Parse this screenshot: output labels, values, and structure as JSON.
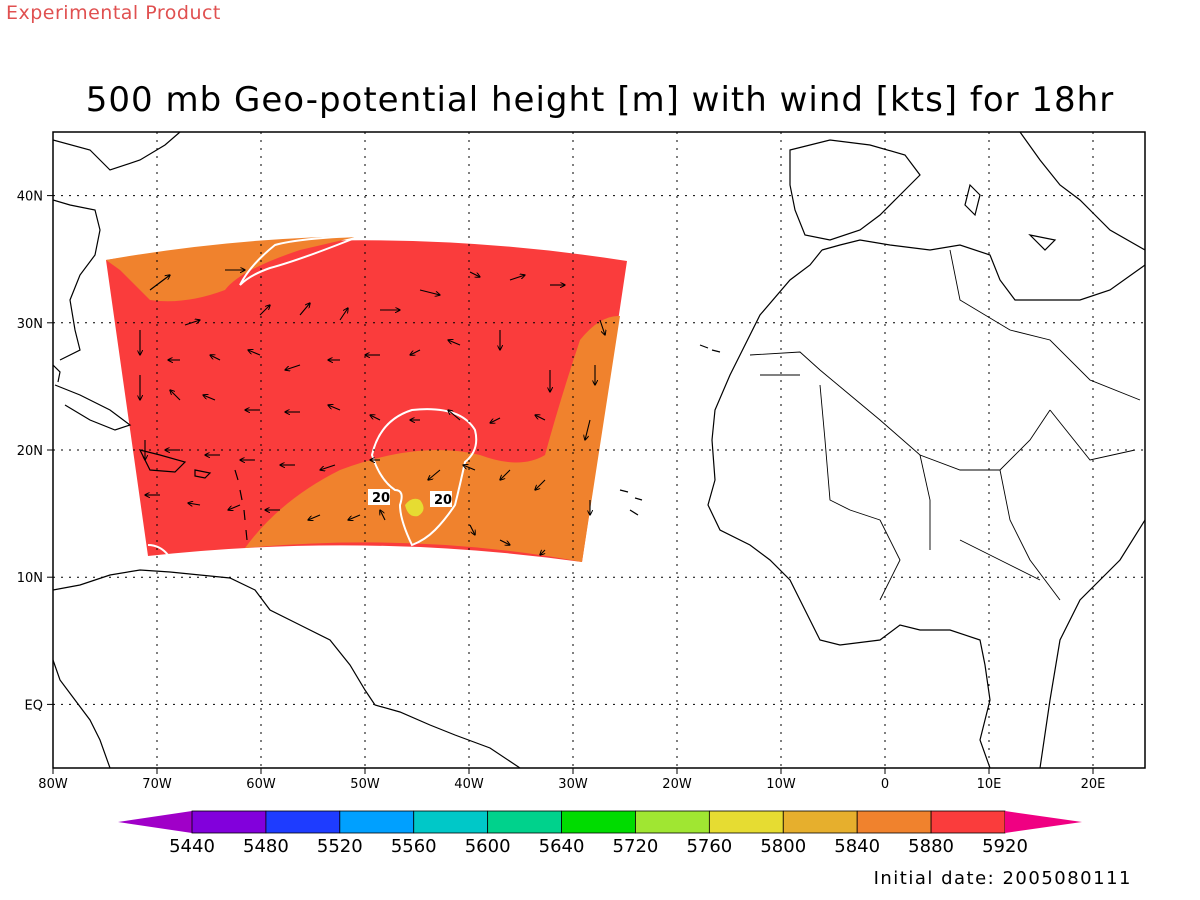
{
  "header": {
    "product_tag": "Experimental Product",
    "title": "500 mb Geo-potential height [m] with wind [kts] for 18hr"
  },
  "footer": {
    "initial_date": "Initial date: 2005080111"
  },
  "map": {
    "lon_range": [
      -80,
      25
    ],
    "lat_range": [
      -5,
      45
    ],
    "lon_labels": [
      "80W",
      "70W",
      "60W",
      "50W",
      "40W",
      "30W",
      "20W",
      "10W",
      "0",
      "10E",
      "20E"
    ],
    "lon_values": [
      -80,
      -70,
      -60,
      -50,
      -40,
      -30,
      -20,
      -10,
      0,
      10,
      20
    ],
    "lat_labels": [
      "EQ",
      "10N",
      "20N",
      "30N",
      "40N"
    ],
    "lat_values": [
      0,
      10,
      20,
      30,
      40
    ],
    "gridlines": true,
    "fill_colors": {
      "domain_high": "#fa3c3c",
      "domain_mid": "#f0822d",
      "core": "#e6dc32"
    },
    "contour_labels": [
      "20",
      "20"
    ]
  },
  "colorbar": {
    "labels": [
      "5440",
      "5480",
      "5520",
      "5560",
      "5600",
      "5640",
      "5720",
      "5760",
      "5800",
      "5840",
      "5880",
      "5920"
    ],
    "colors": [
      "#a000c8",
      "#8200dc",
      "#1e3cff",
      "#00a0ff",
      "#00c8c8",
      "#00d28c",
      "#00dc00",
      "#a0e632",
      "#e6dc32",
      "#e6af2d",
      "#f0822d",
      "#fa3c3c",
      "#f00082"
    ]
  }
}
